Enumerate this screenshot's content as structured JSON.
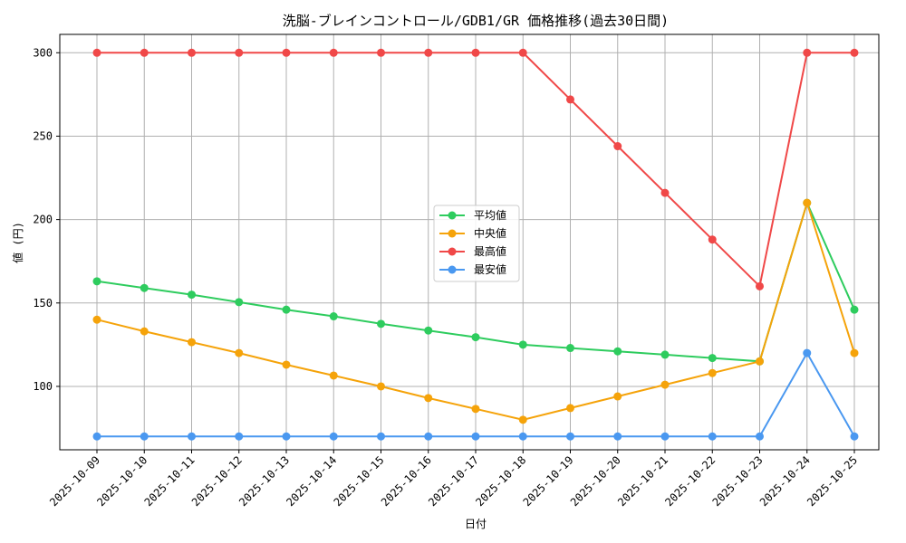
{
  "chart_data": {
    "type": "line",
    "title": "洗脳-ブレインコントロール/GDB1/GR 価格推移(過去30日間)",
    "xlabel": "日付",
    "ylabel": "値 (円)",
    "categories": [
      "2025-10-09",
      "2025-10-10",
      "2025-10-11",
      "2025-10-12",
      "2025-10-13",
      "2025-10-14",
      "2025-10-15",
      "2025-10-16",
      "2025-10-17",
      "2025-10-18",
      "2025-10-19",
      "2025-10-20",
      "2025-10-21",
      "2025-10-22",
      "2025-10-23",
      "2025-10-24",
      "2025-10-25"
    ],
    "ylim": [
      62,
      311
    ],
    "yticks": [
      100,
      150,
      200,
      250,
      300
    ],
    "grid": true,
    "legend_position": "center",
    "series": [
      {
        "name": "平均値",
        "color": "#2ecc5e",
        "values": [
          163,
          159,
          155,
          150.5,
          146,
          142,
          137.5,
          133.5,
          129.5,
          125,
          123,
          121,
          119,
          117,
          115,
          210,
          146
        ]
      },
      {
        "name": "中央値",
        "color": "#f5a30a",
        "values": [
          140,
          133,
          126.5,
          120,
          113,
          106.5,
          100,
          93,
          86.5,
          80,
          87,
          94,
          101,
          108,
          115,
          210,
          120
        ]
      },
      {
        "name": "最高値",
        "color": "#f04848",
        "values": [
          300,
          300,
          300,
          300,
          300,
          300,
          300,
          300,
          300,
          300,
          272,
          244,
          216,
          188,
          160,
          300,
          300
        ]
      },
      {
        "name": "最安値",
        "color": "#4a98f0",
        "values": [
          70,
          70,
          70,
          70,
          70,
          70,
          70,
          70,
          70,
          70,
          70,
          70,
          70,
          70,
          70,
          120,
          70
        ]
      }
    ]
  }
}
